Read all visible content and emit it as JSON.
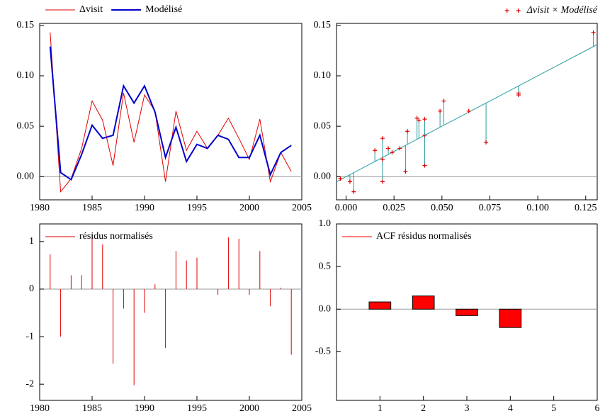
{
  "chart_data": [
    {
      "type": "line",
      "x": [
        1981,
        1982,
        1983,
        1984,
        1985,
        1986,
        1987,
        1988,
        1989,
        1990,
        1991,
        1992,
        1993,
        1994,
        1995,
        1996,
        1997,
        1998,
        1999,
        2000,
        2001,
        2002,
        2003,
        2004
      ],
      "series": [
        {
          "name": "Δvisit",
          "color": "#e00000",
          "values": [
            0.143,
            -0.015,
            -0.002,
            0.028,
            0.075,
            0.056,
            0.011,
            0.083,
            0.034,
            0.081,
            0.065,
            -0.005,
            0.065,
            0.026,
            0.045,
            0.028,
            0.041,
            0.058,
            0.038,
            0.017,
            0.057,
            -0.005,
            0.024,
            0.005
          ]
        },
        {
          "name": "Modélisé",
          "color": "#0000cc",
          "values": [
            0.129,
            0.004,
            -0.003,
            0.022,
            0.051,
            0.038,
            0.041,
            0.09,
            0.073,
            0.09,
            0.064,
            0.019,
            0.049,
            0.015,
            0.032,
            0.028,
            0.041,
            0.037,
            0.019,
            0.019,
            0.041,
            0.002,
            0.024,
            0.031
          ]
        }
      ],
      "xlim": [
        1980,
        2005
      ],
      "xticks": [
        1980,
        1985,
        1990,
        1995,
        2000,
        2005
      ],
      "ylim": [
        -0.023,
        0.152
      ],
      "yticks": [
        {
          "value": 0,
          "label": "0.00"
        },
        {
          "value": 0.05,
          "label": "0.05"
        },
        {
          "value": 0.1,
          "label": "0.10"
        },
        {
          "value": 0.15,
          "label": "0.15"
        }
      ],
      "legend": "above-left"
    },
    {
      "type": "scatter",
      "x": [
        0.129,
        0.004,
        -0.003,
        0.022,
        0.051,
        0.038,
        0.041,
        0.09,
        0.073,
        0.09,
        0.064,
        0.019,
        0.049,
        0.015,
        0.032,
        0.028,
        0.041,
        0.037,
        0.019,
        0.019,
        0.041,
        0.002,
        0.024,
        0.031
      ],
      "series": [
        {
          "name": "Δvisit × Modélisé",
          "color": "#e00000",
          "values": [
            0.143,
            -0.015,
            -0.002,
            0.028,
            0.075,
            0.056,
            0.011,
            0.083,
            0.034,
            0.081,
            0.065,
            -0.005,
            0.065,
            0.026,
            0.045,
            0.028,
            0.041,
            0.058,
            0.038,
            0.017,
            0.057,
            -0.005,
            0.024,
            0.005
          ]
        }
      ],
      "fit_color": "#2a9d9d",
      "xlim": [
        -0.005,
        0.131
      ],
      "xticks": [
        {
          "value": 0,
          "label": "0.000"
        },
        {
          "value": 0.025,
          "label": "0.025"
        },
        {
          "value": 0.05,
          "label": "0.050"
        },
        {
          "value": 0.075,
          "label": "0.075"
        },
        {
          "value": 0.1,
          "label": "0.100"
        },
        {
          "value": 0.125,
          "label": "0.125"
        }
      ],
      "ylim": [
        -0.023,
        0.152
      ],
      "yticks": [
        {
          "value": 0,
          "label": "0.00"
        },
        {
          "value": 0.05,
          "label": "0.05"
        },
        {
          "value": 0.1,
          "label": "0.10"
        },
        {
          "value": 0.15,
          "label": "0.15"
        }
      ],
      "legend": "above-right"
    },
    {
      "type": "stem",
      "x": [
        1981,
        1982,
        1983,
        1984,
        1985,
        1986,
        1987,
        1988,
        1989,
        1990,
        1991,
        1992,
        1993,
        1994,
        1995,
        1996,
        1997,
        1998,
        1999,
        2000,
        2001,
        2002,
        2003,
        2004
      ],
      "series": [
        {
          "name": "résidus normalisés",
          "color": "#e00000",
          "values": [
            0.73,
            -1.0,
            0.29,
            0.29,
            1.16,
            0.94,
            -1.57,
            -0.41,
            -2.02,
            -0.5,
            0.1,
            -1.24,
            0.8,
            0.6,
            0.66,
            0.0,
            -0.12,
            1.09,
            1.06,
            -0.12,
            0.8,
            -0.36,
            0.03,
            -1.38
          ]
        }
      ],
      "xlim": [
        1980,
        2005
      ],
      "xticks": [
        1980,
        1985,
        1990,
        1995,
        2000,
        2005
      ],
      "ylim": [
        -2.34,
        1.37
      ],
      "yticks": [
        -2,
        -1,
        0,
        1
      ],
      "legend": "upper-left"
    },
    {
      "type": "bar",
      "x": [
        1,
        2,
        3,
        4
      ],
      "series": [
        {
          "name": "ACF résidus normalisés",
          "color": "#ff0000",
          "values": [
            0.085,
            0.155,
            -0.075,
            -0.215
          ]
        }
      ],
      "xlim": [
        0,
        6
      ],
      "xticks": [
        1,
        2,
        3,
        4,
        5,
        6
      ],
      "ylim": [
        -1.07,
        1.0
      ],
      "yticks": [
        {
          "value": -0.5,
          "label": "-0.5"
        },
        {
          "value": 0,
          "label": "0.0"
        },
        {
          "value": 0.5,
          "label": "0.5"
        },
        {
          "value": 1,
          "label": "1.0"
        }
      ],
      "legend": "upper-left"
    }
  ]
}
